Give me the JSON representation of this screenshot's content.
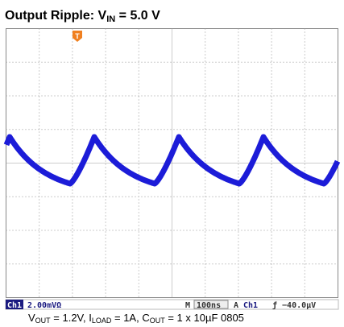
{
  "title": {
    "main": "Output Ripple: V",
    "sub": "IN",
    "tail": " = 5.0 V"
  },
  "scope": {
    "trigger_marker": "T",
    "channel": "Ch1",
    "scale": "2.00mVΩ",
    "timebase_label": "M",
    "timebase": "100ns",
    "trigger_mode": "A",
    "trigger_source": "Ch1",
    "trigger_level": "ƒ −40.0µV"
  },
  "caption": {
    "v": "V",
    "v_sub": "OUT",
    "v_text": " = 1.2V, I",
    "i_sub": "LOAD",
    "i_text": " = 1A, C",
    "c_sub": "OUT",
    "c_text": " = 1 x 10µF 0805"
  }
}
